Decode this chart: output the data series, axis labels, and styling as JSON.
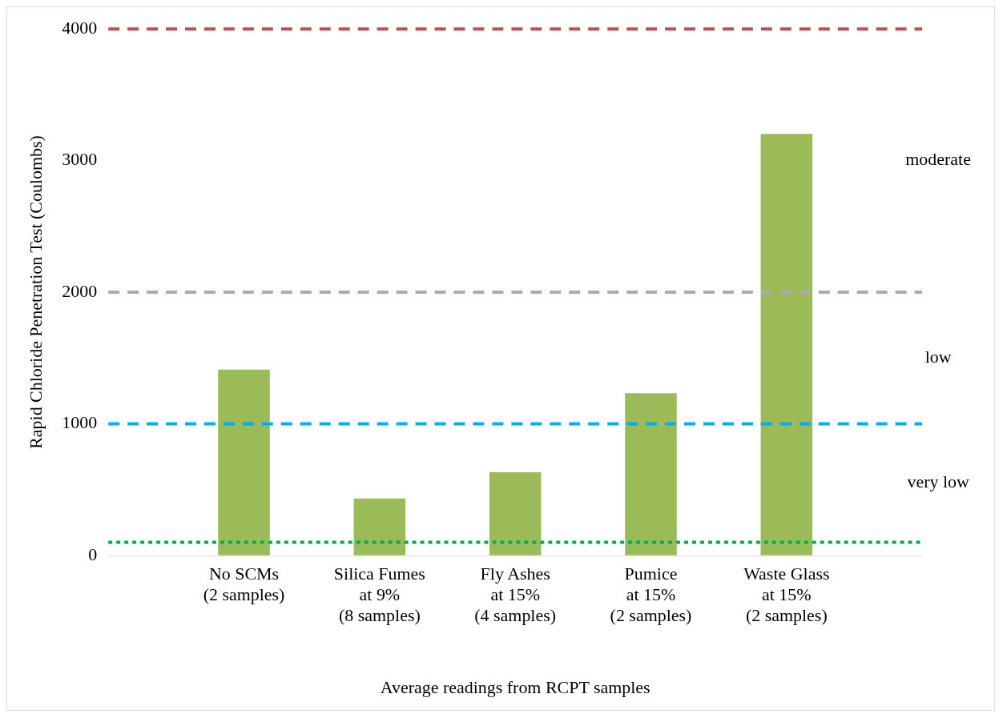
{
  "chart_data": {
    "type": "bar",
    "xlabel": "Average readings from RCPT samples",
    "ylabel": "Rapid Chloride Penetration Test (Coulombs)",
    "categories": [
      "No SCMs\n(2 samples)",
      "Silica Fumes\nat 9%\n(8 samples)",
      "Fly Ashes\nat 15%\n(4 samples)",
      "Pumice\nat 15%\n(2 samples)",
      "Waste Glass\nat 15%\n(2 samples)"
    ],
    "values": [
      1410,
      430,
      630,
      1230,
      3200
    ],
    "color": "#9bbb59",
    "ylim": [
      0,
      4000
    ],
    "yticks": [
      0,
      1000,
      2000,
      3000,
      4000
    ],
    "grid": false,
    "legend": false,
    "ref_lines": [
      {
        "axis": "y",
        "value": 4000,
        "color": "#c0504d",
        "line_style": "dashed"
      },
      {
        "axis": "y",
        "value": 2000,
        "color": "#b3a2c7",
        "line_style": "dashed"
      },
      {
        "axis": "y",
        "value": 1000,
        "color": "#00b0f0",
        "line_style": "dashed"
      },
      {
        "axis": "y",
        "value": 100,
        "color": "#00b050",
        "line_style": "dotted"
      }
    ],
    "annotations": [
      "moderate",
      "low",
      "very low"
    ]
  }
}
